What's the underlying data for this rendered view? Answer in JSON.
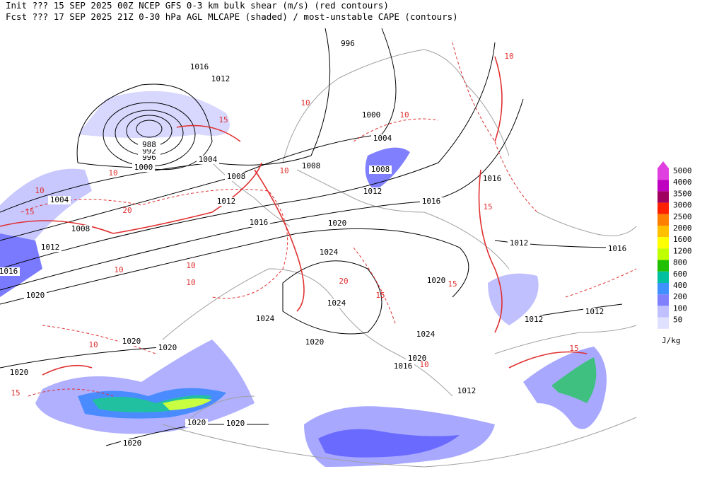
{
  "header": {
    "line1": "Init  ??? 15 SEP 2025 00Z  NCEP GFS 0-3 km bulk shear (m/s) (red contours)",
    "line2": "Fcst ??? 17 SEP 2025 21Z  0-30 hPa AGL MLCAPE (shaded) / most-unstable CAPE (contours)"
  },
  "legend": {
    "levels": [
      {
        "value": 5000,
        "color": "#e040e0"
      },
      {
        "value": 4000,
        "color": "#c000c0"
      },
      {
        "value": 3500,
        "color": "#a00060"
      },
      {
        "value": 3000,
        "color": "#ff2000"
      },
      {
        "value": 2500,
        "color": "#ff8000"
      },
      {
        "value": 2000,
        "color": "#ffc000"
      },
      {
        "value": 1600,
        "color": "#ffff00"
      },
      {
        "value": 1200,
        "color": "#c0ff00"
      },
      {
        "value": 800,
        "color": "#20c000"
      },
      {
        "value": 600,
        "color": "#00c0a0"
      },
      {
        "value": 400,
        "color": "#4090ff"
      },
      {
        "value": 200,
        "color": "#8080ff"
      },
      {
        "value": 100,
        "color": "#c0c0ff"
      },
      {
        "value": 50,
        "color": "#e0e0ff"
      }
    ],
    "unit": "J/kg"
  },
  "isobar_labels": [
    1016,
    1012,
    1000,
    996,
    1004,
    1008,
    1012,
    1016,
    1016,
    1008,
    1008,
    1004,
    1000,
    996,
    992,
    988,
    1004,
    1008,
    1012,
    1016,
    1020,
    1012,
    1016,
    1020,
    1024,
    1024,
    1024,
    1020,
    1012,
    1016,
    1012,
    1012,
    1024,
    1020,
    1020,
    1020,
    1020,
    1016,
    1020,
    1012,
    1020,
    1020,
    1020
  ],
  "shear_labels": [
    10,
    15,
    20,
    10,
    15,
    10,
    10,
    20,
    15,
    10,
    15,
    10,
    10,
    15,
    10,
    15,
    10,
    15,
    10,
    10
  ]
}
